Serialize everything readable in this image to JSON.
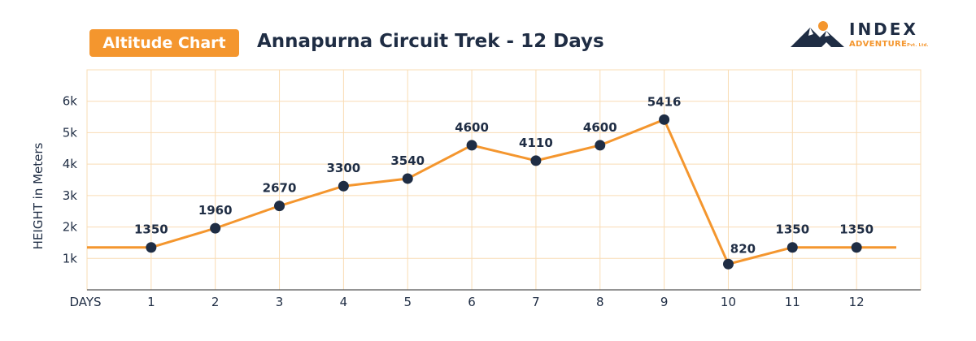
{
  "badge": {
    "label": "Altitude Chart"
  },
  "title": "Annapurna Circuit Trek - 12 Days",
  "logo": {
    "main": "INDEX",
    "sub": "ADVENTURE",
    "suffix": "Pvt. Ltd."
  },
  "colors": {
    "line": "#f4962e",
    "point": "#1f2d44",
    "grid": "#f9dcb4",
    "text": "#1f2d44"
  },
  "chart_data": {
    "type": "line",
    "title": "Annapurna Circuit Trek - 12 Days",
    "xlabel": "DAYS",
    "ylabel": "HEIGHT in Meters",
    "x": [
      1,
      2,
      3,
      4,
      5,
      6,
      7,
      8,
      9,
      10,
      11,
      12
    ],
    "y": [
      1350,
      1960,
      2670,
      3300,
      3540,
      4600,
      4110,
      4600,
      5416,
      820,
      1350,
      1350
    ],
    "data_labels": [
      "1350",
      "1960",
      "2670",
      "3300",
      "3540",
      "4600",
      "4110",
      "4600",
      "5416",
      "820",
      "1350",
      "1350"
    ],
    "x_tick_labels": [
      "1",
      "2",
      "3",
      "4",
      "5",
      "6",
      "7",
      "8",
      "9",
      "10",
      "11",
      "12"
    ],
    "y_ticks": [
      1000,
      2000,
      3000,
      4000,
      5000,
      6000
    ],
    "y_tick_labels": [
      "1k",
      "2k",
      "3k",
      "4k",
      "5k",
      "6k"
    ],
    "line_extends": {
      "start_value": 1350,
      "end_value": 1350
    },
    "ylim": [
      0,
      7000
    ],
    "xlim": [
      0,
      13
    ],
    "grid": true,
    "legend": "none"
  }
}
